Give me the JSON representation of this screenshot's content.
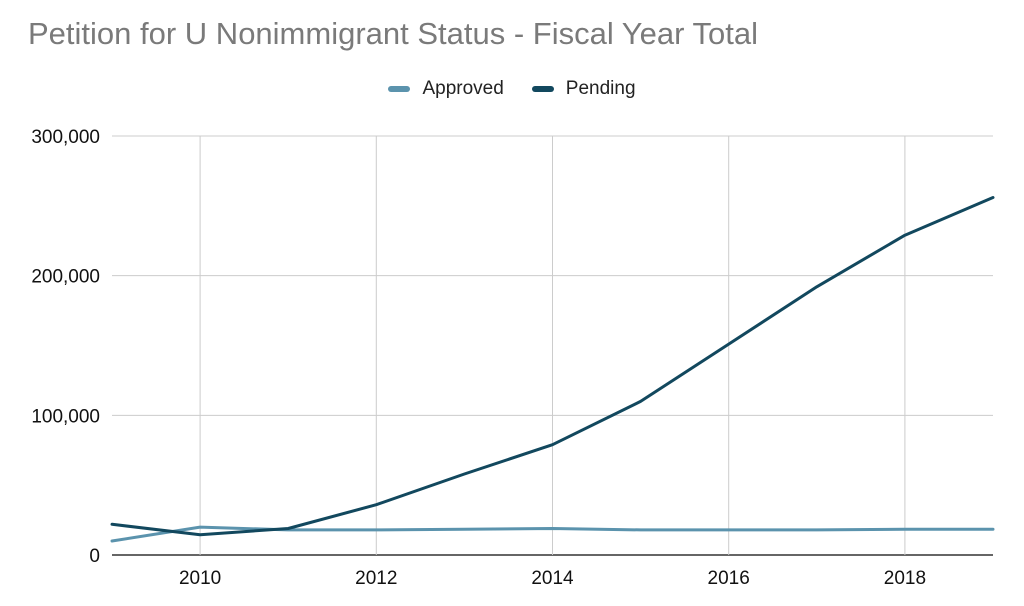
{
  "chart_data": {
    "type": "line",
    "title": "Petition for U Nonimmigrant Status - Fiscal Year Total",
    "xlabel": "",
    "ylabel": "",
    "x": [
      2009,
      2010,
      2011,
      2012,
      2013,
      2014,
      2015,
      2016,
      2017,
      2018,
      2019
    ],
    "xlim": [
      2009,
      2019
    ],
    "ylim": [
      0,
      300000
    ],
    "x_ticks": [
      "2010",
      "2012",
      "2014",
      "2016",
      "2018"
    ],
    "y_ticks": [
      "0",
      "100,000",
      "200,000",
      "300,000"
    ],
    "grid": true,
    "legend_position": "top",
    "series": [
      {
        "name": "Approved",
        "color": "#5b93ad",
        "values": [
          10000,
          20000,
          18000,
          18000,
          18500,
          19000,
          18000,
          18000,
          18000,
          18500,
          18500
        ]
      },
      {
        "name": "Pending",
        "color": "#12485e",
        "values": [
          22000,
          14500,
          19000,
          36000,
          58000,
          79000,
          110000,
          151000,
          192000,
          229000,
          256000
        ]
      }
    ]
  }
}
